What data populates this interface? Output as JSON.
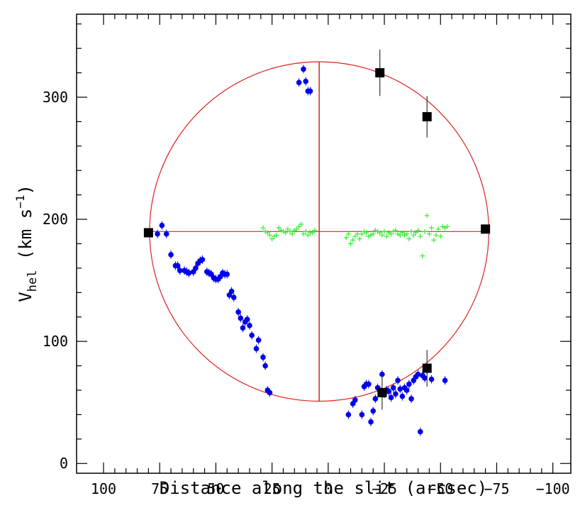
{
  "chart_data": {
    "type": "scatter",
    "xlabel": "Distance along the slit (arcsec)",
    "ylabel": {
      "base": "V",
      "sub": "hel",
      "rest1": " (km s",
      "sup": "−1",
      "rest2": ")"
    },
    "xlim": [
      112,
      -108
    ],
    "ylim": [
      -8,
      368
    ],
    "x_ticks": [
      100,
      75,
      50,
      25,
      0,
      -25,
      -50,
      -75,
      -100
    ],
    "x_tick_labels": [
      "100",
      "75",
      "50",
      "25",
      "0",
      "−25",
      "−50",
      "−75",
      "−100"
    ],
    "y_ticks": [
      0,
      100,
      200,
      300
    ],
    "y_tick_labels": [
      "0",
      "100",
      "200",
      "300"
    ],
    "colors": {
      "blue_points": "#0000ee",
      "green_crosses": "#33ee33",
      "squares": "#000000",
      "circle": "#dd2222"
    },
    "circle": {
      "center": [
        4,
        190
      ],
      "radius_x": 75.5,
      "radius_y": 139
    },
    "crosshair": {
      "h_line": {
        "x": [
          80,
          -71
        ],
        "y": 190
      },
      "v_line": {
        "x": 4,
        "y": [
          51,
          329
        ]
      }
    },
    "series": [
      {
        "marker": "filled-circle",
        "color": "blue",
        "points": [
          [
            76,
            188
          ],
          [
            74,
            195
          ],
          [
            72,
            188
          ],
          [
            70,
            171
          ],
          [
            68,
            162
          ],
          [
            67,
            162
          ],
          [
            66,
            158
          ],
          [
            64,
            158
          ],
          [
            63,
            157
          ],
          [
            62,
            156
          ],
          [
            60,
            157
          ],
          [
            59,
            160
          ],
          [
            58,
            164
          ],
          [
            57,
            166
          ],
          [
            56,
            167
          ],
          [
            54,
            157
          ],
          [
            53,
            156
          ],
          [
            52,
            155
          ],
          [
            51,
            152
          ],
          [
            50,
            151
          ],
          [
            49,
            151
          ],
          [
            48,
            153
          ],
          [
            47,
            156
          ],
          [
            46,
            155
          ],
          [
            45,
            155
          ],
          [
            44,
            138
          ],
          [
            43,
            141
          ],
          [
            42,
            136
          ],
          [
            40,
            124
          ],
          [
            39,
            119
          ],
          [
            38,
            111
          ],
          [
            37,
            116
          ],
          [
            36,
            118
          ],
          [
            35,
            113
          ],
          [
            34,
            105
          ],
          [
            32,
            94
          ],
          [
            31,
            101
          ],
          [
            29,
            87
          ],
          [
            28,
            80
          ],
          [
            27,
            60
          ],
          [
            26,
            58
          ],
          [
            13,
            312
          ],
          [
            11,
            323
          ],
          [
            10,
            313
          ],
          [
            9,
            305
          ],
          [
            8,
            305
          ],
          [
            -9,
            40
          ],
          [
            -11,
            49
          ],
          [
            -12,
            52
          ],
          [
            -15,
            40
          ],
          [
            -16,
            63
          ],
          [
            -17,
            65
          ],
          [
            -18,
            65
          ],
          [
            -19,
            34
          ],
          [
            -20,
            43
          ],
          [
            -21,
            53
          ],
          [
            -22,
            62
          ],
          [
            -23,
            60
          ],
          [
            -24,
            73
          ],
          [
            -25,
            57
          ],
          [
            -26,
            60
          ],
          [
            -27,
            59
          ],
          [
            -28,
            54
          ],
          [
            -29,
            62
          ],
          [
            -30,
            57
          ],
          [
            -31,
            68
          ],
          [
            -32,
            61
          ],
          [
            -33,
            55
          ],
          [
            -34,
            62
          ],
          [
            -35,
            60
          ],
          [
            -36,
            65
          ],
          [
            -37,
            53
          ],
          [
            -38,
            68
          ],
          [
            -39,
            71
          ],
          [
            -40,
            73
          ],
          [
            -41,
            26
          ],
          [
            -42,
            72
          ],
          [
            -43,
            70
          ],
          [
            -44,
            78
          ],
          [
            -46,
            69
          ],
          [
            -52,
            68
          ]
        ]
      },
      {
        "marker": "cross",
        "color": "green",
        "points": [
          [
            29,
            193
          ],
          [
            28,
            190
          ],
          [
            27,
            189
          ],
          [
            26,
            187
          ],
          [
            25,
            184
          ],
          [
            24,
            186
          ],
          [
            23,
            187
          ],
          [
            22,
            193
          ],
          [
            21,
            191
          ],
          [
            20,
            190
          ],
          [
            19,
            189
          ],
          [
            18,
            192
          ],
          [
            17,
            190
          ],
          [
            16,
            188
          ],
          [
            15,
            191
          ],
          [
            14,
            192
          ],
          [
            13,
            194
          ],
          [
            12,
            196
          ],
          [
            11,
            188
          ],
          [
            10,
            190
          ],
          [
            9,
            187
          ],
          [
            8,
            189
          ],
          [
            7,
            189
          ],
          [
            6,
            191
          ],
          [
            -8,
            185
          ],
          [
            -9,
            188
          ],
          [
            -10,
            180
          ],
          [
            -11,
            183
          ],
          [
            -12,
            186
          ],
          [
            -13,
            188
          ],
          [
            -14,
            184
          ],
          [
            -15,
            188
          ],
          [
            -16,
            190
          ],
          [
            -17,
            189
          ],
          [
            -18,
            186
          ],
          [
            -19,
            187
          ],
          [
            -20,
            188
          ],
          [
            -21,
            191
          ],
          [
            -22,
            190
          ],
          [
            -23,
            189
          ],
          [
            -24,
            187
          ],
          [
            -25,
            190
          ],
          [
            -26,
            186
          ],
          [
            -27,
            189
          ],
          [
            -28,
            188
          ],
          [
            -29,
            190
          ],
          [
            -30,
            191
          ],
          [
            -31,
            188
          ],
          [
            -32,
            187
          ],
          [
            -33,
            189
          ],
          [
            -34,
            187
          ],
          [
            -35,
            188
          ],
          [
            -36,
            184
          ],
          [
            -37,
            190
          ],
          [
            -38,
            187
          ],
          [
            -39,
            189
          ],
          [
            -40,
            191
          ],
          [
            -41,
            186
          ],
          [
            -42,
            170
          ],
          [
            -43,
            190
          ],
          [
            -44,
            203
          ],
          [
            -45,
            188
          ],
          [
            -46,
            193
          ],
          [
            -47,
            183
          ],
          [
            -48,
            187
          ],
          [
            -49,
            192
          ],
          [
            -50,
            186
          ],
          [
            -51,
            194
          ],
          [
            -52,
            193
          ],
          [
            -53,
            194
          ]
        ]
      },
      {
        "marker": "filled-square",
        "color": "black",
        "points": [
          {
            "x": 80,
            "y": 189,
            "err": 2
          },
          {
            "x": -23,
            "y": 320,
            "err": 19
          },
          {
            "x": -44,
            "y": 284,
            "err": 17
          },
          {
            "x": -70,
            "y": 192,
            "err": 2
          },
          {
            "x": -24,
            "y": 58,
            "err": 14
          },
          {
            "x": -44,
            "y": 78,
            "err": 15
          }
        ]
      }
    ]
  }
}
